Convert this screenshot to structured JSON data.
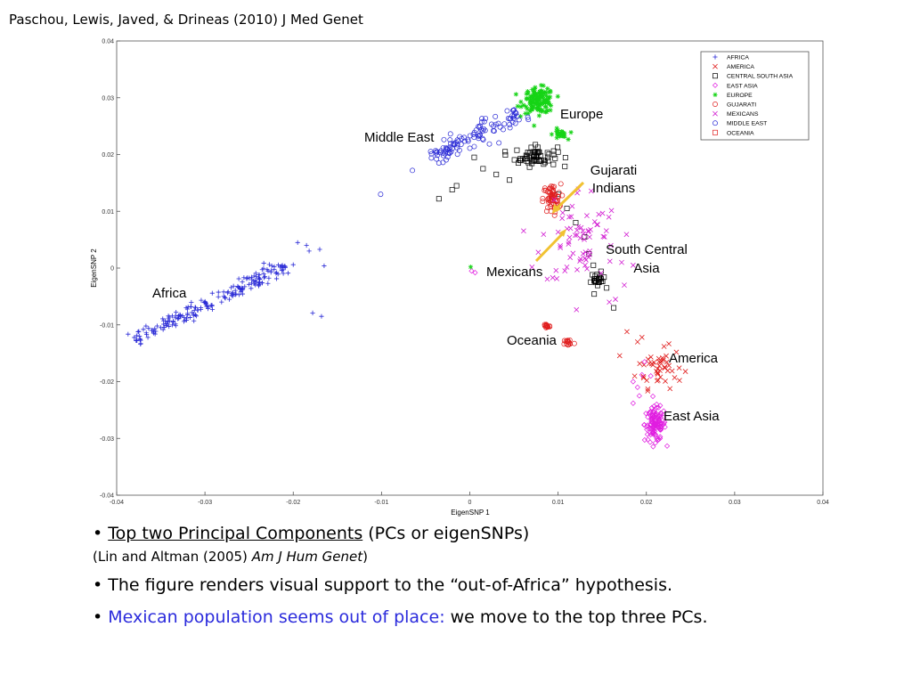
{
  "citation": "Paschou, Lewis, Javed, & Drineas (2010) J Med Genet",
  "chart_data": {
    "type": "scatter",
    "xlabel": "EigenSNP 1",
    "ylabel": "EigenSNP 2",
    "xlim": [
      -0.04,
      0.04
    ],
    "ylim": [
      -0.04,
      0.04
    ],
    "xticks": [
      "-0.04",
      "-0.03",
      "-0.02",
      "-0.01",
      "0",
      "0.01",
      "0.02",
      "0.03",
      "0.04"
    ],
    "yticks": [
      "0.04",
      "0.03",
      "0.02",
      "0.01",
      "0",
      "-0.01",
      "-0.02",
      "-0.03",
      "-0.04"
    ],
    "legend_position": "top-right",
    "grid": false,
    "series": [
      {
        "name": "AFRICA",
        "color": "#2a2ad6",
        "marker": "plus",
        "clusters": [
          {
            "line": [
              [
                -0.038,
                -0.0127
              ],
              [
                -0.021,
                0.0005
              ]
            ],
            "n": 200,
            "spread": 0.0006
          }
        ],
        "points": [
          [
            -0.0178,
            -0.0079
          ],
          [
            -0.0168,
            -0.0085
          ],
          [
            -0.0165,
            0.0004
          ],
          [
            -0.0195,
            0.0045
          ],
          [
            -0.0182,
            0.003
          ],
          [
            -0.017,
            0.0033
          ],
          [
            -0.0185,
            0.004
          ],
          [
            -0.02,
            0.0006
          ]
        ]
      },
      {
        "name": "AMERICA",
        "color": "#e01e1e",
        "marker": "x",
        "clusters": [
          {
            "center": [
              0.0215,
              -0.0175
            ],
            "sx": 0.0013,
            "sy": 0.0018,
            "n": 45
          }
        ],
        "points": [
          [
            0.0178,
            -0.0112
          ],
          [
            0.0195,
            -0.0122
          ],
          [
            0.019,
            -0.013
          ],
          [
            0.022,
            -0.0138
          ],
          [
            0.0232,
            -0.0193
          ]
        ]
      },
      {
        "name": "CENTRAL SOUTH ASIA",
        "color": "#000000",
        "marker": "square",
        "clusters": [
          {
            "center": [
              0.0075,
              0.0197
            ],
            "sx": 0.0012,
            "sy": 0.0009,
            "n": 60
          },
          {
            "center": [
              0.0145,
              -0.0022
            ],
            "sx": 0.0004,
            "sy": 0.0007,
            "n": 22
          }
        ],
        "points": [
          [
            0.0005,
            0.0195
          ],
          [
            0.0015,
            0.0175
          ],
          [
            0.003,
            0.0165
          ],
          [
            0.0045,
            0.0155
          ],
          [
            -0.0015,
            0.0145
          ],
          [
            -0.0035,
            0.0122
          ],
          [
            -0.002,
            0.0138
          ],
          [
            0.004,
            0.0205
          ],
          [
            0.0055,
            0.0185
          ],
          [
            0.01,
            0.013
          ],
          [
            0.011,
            0.0105
          ],
          [
            0.012,
            0.008
          ],
          [
            0.013,
            0.0055
          ],
          [
            0.0135,
            0.0025
          ],
          [
            0.014,
            0.0005
          ],
          [
            0.0155,
            -0.0035
          ],
          [
            0.0163,
            -0.007
          ]
        ]
      },
      {
        "name": "EAST ASIA",
        "color": "#e01ee0",
        "marker": "diamond",
        "clusters": [
          {
            "center": [
              0.021,
              -0.0275
            ],
            "sx": 0.0006,
            "sy": 0.0015,
            "n": 120
          }
        ],
        "points": [
          [
            0.0195,
            -0.0188
          ],
          [
            0.019,
            -0.021
          ],
          [
            0.0185,
            -0.02
          ],
          [
            0.0192,
            -0.0225
          ],
          [
            0.0198,
            -0.0165
          ],
          [
            0.0185,
            -0.0238
          ],
          [
            0.0205,
            -0.019
          ],
          [
            0.0002,
            -0.0005
          ],
          [
            0.0006,
            -0.0008
          ]
        ]
      },
      {
        "name": "EUROPE",
        "color": "#16d416",
        "marker": "star",
        "clusters": [
          {
            "center": [
              0.0078,
              0.0295
            ],
            "sx": 0.0009,
            "sy": 0.0011,
            "n": 130
          },
          {
            "center": [
              0.0102,
              0.0235
            ],
            "sx": 0.0004,
            "sy": 0.0005,
            "n": 25
          }
        ],
        "points": [
          [
            0.0001,
            0.0002
          ]
        ]
      },
      {
        "name": "GUJARATI",
        "color": "#e01e1e",
        "marker": "circle",
        "clusters": [
          {
            "center": [
              0.0093,
              0.0122
            ],
            "sx": 0.0005,
            "sy": 0.0013,
            "n": 60
          },
          {
            "center": [
              0.0087,
              -0.0102
            ],
            "sx": 0.0002,
            "sy": 0.0003,
            "n": 15
          },
          {
            "center": [
              0.0112,
              -0.0131
            ],
            "sx": 0.0003,
            "sy": 0.0003,
            "n": 15
          }
        ],
        "points": []
      },
      {
        "name": "MEXICANS",
        "color": "#d21ed2",
        "marker": "x",
        "clusters": [
          {
            "center": [
              0.0125,
              0.0055
            ],
            "sx": 0.0022,
            "sy": 0.0045,
            "n": 70
          }
        ],
        "points": [
          [
            0.0185,
            0.0005
          ],
          [
            0.0172,
            0.001
          ],
          [
            0.0175,
            -0.003
          ],
          [
            0.0165,
            -0.0055
          ],
          [
            0.0158,
            -0.006
          ]
        ]
      },
      {
        "name": "MIDDLE EAST",
        "color": "#2a2ad6",
        "marker": "circle",
        "clusters": [
          {
            "line": [
              [
                -0.0045,
                0.0195
              ],
              [
                0.006,
                0.0275
              ]
            ],
            "n": 110,
            "spread": 0.0008
          }
        ],
        "points": [
          [
            -0.0101,
            0.013
          ],
          [
            -0.0065,
            0.0172
          ],
          [
            -0.0035,
            0.0185
          ]
        ]
      },
      {
        "name": "OCEANIA",
        "color": "#e01e1e",
        "marker": "square",
        "clusters": [],
        "points": []
      }
    ]
  },
  "legend_entries": [
    "AFRICA",
    "AMERICA",
    "CENTRAL SOUTH ASIA",
    "EAST ASIA",
    "EUROPE",
    "GUJARATI",
    "MEXICANS",
    "MIDDLE EAST",
    "OCEANIA"
  ],
  "annotations": {
    "europe": "Europe",
    "middle_east": "Middle East",
    "gujarati_1": "Gujarati",
    "gujarati_2": "Indians",
    "south_central_1": "South Central",
    "south_central_2": "Asia",
    "mexicans": "Mexicans",
    "africa": "Africa",
    "oceania": "Oceania",
    "america": "America",
    "east_asia": "East Asia"
  },
  "bullets": {
    "b1_bullet": "• ",
    "b1_link": "Top two Principal Components",
    "b1_rest": " (PCs or eigenSNPs)",
    "b1_sub_a": "(Lin and Altman (2005) ",
    "b1_sub_journal": "Am J Hum Genet",
    "b1_sub_b": ")",
    "b2": "• The figure renders visual support to the “out-of-Africa” hypothesis.",
    "b3_bullet": "• ",
    "b3_blue": "Mexican population seems out of place:",
    "b3_rest": " we move to the top three PCs."
  }
}
